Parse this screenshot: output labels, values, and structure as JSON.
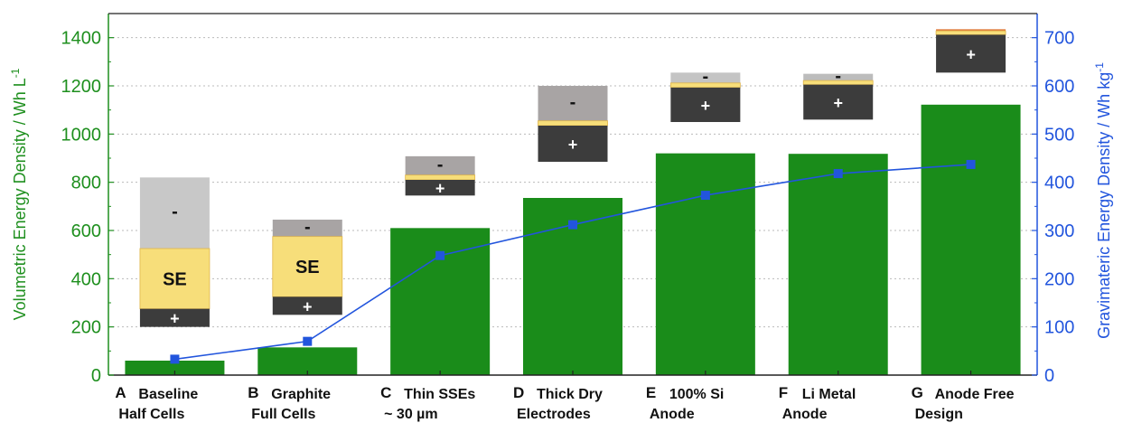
{
  "chart_data": {
    "type": "bar",
    "categories": [
      {
        "letter": "A",
        "lines": [
          "Baseline",
          "Half Cells"
        ]
      },
      {
        "letter": "B",
        "lines": [
          "Graphite",
          "Full Cells"
        ]
      },
      {
        "letter": "C",
        "lines": [
          "Thin SSEs",
          "~ 30 µm"
        ]
      },
      {
        "letter": "D",
        "lines": [
          "Thick Dry",
          "Electrodes"
        ]
      },
      {
        "letter": "E",
        "lines": [
          "100% Si",
          "Anode"
        ]
      },
      {
        "letter": "F",
        "lines": [
          "Li Metal",
          "Anode"
        ]
      },
      {
        "letter": "G",
        "lines": [
          "Anode Free",
          "Design"
        ]
      }
    ],
    "series": [
      {
        "axis": "left",
        "type": "bar",
        "color": "#1a8c1a",
        "values": [
          60,
          115,
          610,
          735,
          920,
          918,
          1122
        ]
      },
      {
        "axis": "right",
        "type": "line",
        "color": "#2255dd",
        "values": [
          33,
          70,
          248,
          312,
          373,
          418,
          437
        ]
      }
    ],
    "ylabel_left": "Volumetric Energy Density / Wh L",
    "ylabel_left_sup": "-1",
    "ylabel_right": "Gravimateric Energy Density / Wh kg",
    "ylabel_right_sup": "-1",
    "ylim_left": [
      0,
      1500
    ],
    "ylim_right": [
      0,
      750
    ],
    "yticks_left": [
      0,
      200,
      400,
      600,
      800,
      1000,
      1200,
      1400
    ],
    "yticks_right": [
      0,
      100,
      200,
      300,
      400,
      500,
      600,
      700
    ],
    "grid": true,
    "cell_stacks": [
      {
        "layers": [
          {
            "kind": "anode",
            "from": 525,
            "to": 820,
            "label": "-"
          },
          {
            "kind": "se",
            "from": 275,
            "to": 525,
            "label": "SE"
          },
          {
            "kind": "cathode",
            "from": 200,
            "to": 275,
            "label": "+"
          }
        ]
      },
      {
        "layers": [
          {
            "kind": "anode",
            "from": 575,
            "to": 645,
            "label": "-"
          },
          {
            "kind": "se",
            "from": 325,
            "to": 575,
            "label": "SE"
          },
          {
            "kind": "cathode",
            "from": 250,
            "to": 325,
            "label": "+"
          }
        ]
      },
      {
        "layers": [
          {
            "kind": "anode",
            "from": 830,
            "to": 908,
            "label": "-"
          },
          {
            "kind": "se",
            "from": 810,
            "to": 830,
            "label": ""
          },
          {
            "kind": "cathode",
            "from": 745,
            "to": 810,
            "label": "+"
          }
        ]
      },
      {
        "layers": [
          {
            "kind": "anode",
            "from": 1055,
            "to": 1200,
            "label": "-"
          },
          {
            "kind": "se",
            "from": 1035,
            "to": 1055,
            "label": ""
          },
          {
            "kind": "cathode",
            "from": 885,
            "to": 1035,
            "label": "+"
          }
        ]
      },
      {
        "layers": [
          {
            "kind": "anode",
            "from": 1212,
            "to": 1255,
            "label": "-"
          },
          {
            "kind": "se",
            "from": 1193,
            "to": 1212,
            "label": ""
          },
          {
            "kind": "cathode",
            "from": 1050,
            "to": 1193,
            "label": "+"
          }
        ]
      },
      {
        "layers": [
          {
            "kind": "li",
            "from": 1222,
            "to": 1250,
            "label": "-"
          },
          {
            "kind": "se",
            "from": 1205,
            "to": 1222,
            "label": ""
          },
          {
            "kind": "cathode",
            "from": 1060,
            "to": 1205,
            "label": "+"
          }
        ]
      },
      {
        "layers": [
          {
            "kind": "cc",
            "from": 1428,
            "to": 1435,
            "label": ""
          },
          {
            "kind": "se",
            "from": 1412,
            "to": 1428,
            "label": ""
          },
          {
            "kind": "cathode",
            "from": 1255,
            "to": 1412,
            "label": "+"
          }
        ]
      }
    ],
    "layer_colors": {
      "anode": "#c8c8c8",
      "se": "#f7de7a",
      "cathode": "#3c3c3c",
      "li": "#bcbcbc",
      "cc": "#e07a3a",
      "bar": "#1a8c1a",
      "line": "#2255dd"
    }
  }
}
